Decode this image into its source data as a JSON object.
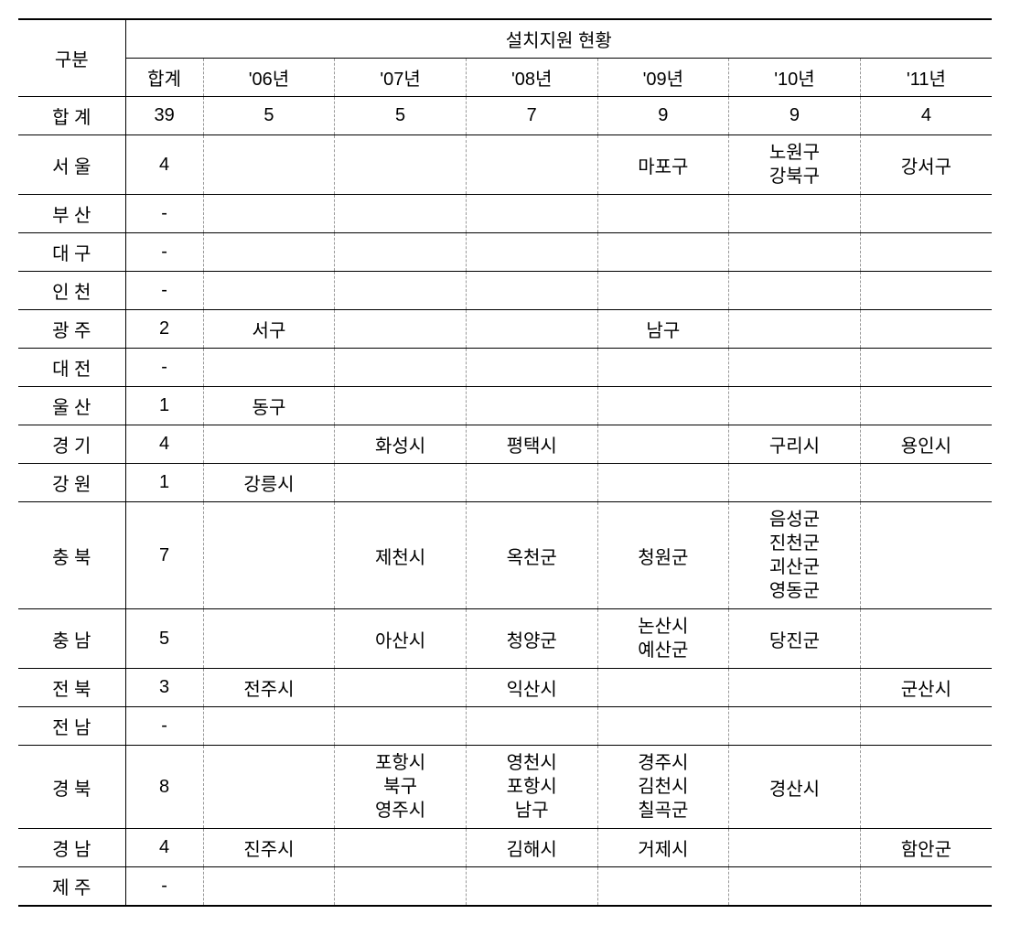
{
  "header": {
    "gubun": "구분",
    "main_header": "설치지원 현황",
    "hapgye": "합계",
    "years": [
      "'06년",
      "'07년",
      "'08년",
      "'09년",
      "'10년",
      "'11년"
    ]
  },
  "totals": {
    "label": "합 계",
    "hapgye": "39",
    "values": [
      "5",
      "5",
      "7",
      "9",
      "9",
      "4"
    ]
  },
  "rows": [
    {
      "region": "서 울",
      "hapgye": "4",
      "cells": [
        "",
        "",
        "",
        "마포구",
        "노원구\n강북구",
        "강서구"
      ]
    },
    {
      "region": "부 산",
      "hapgye": "-",
      "cells": [
        "",
        "",
        "",
        "",
        "",
        ""
      ]
    },
    {
      "region": "대 구",
      "hapgye": "-",
      "cells": [
        "",
        "",
        "",
        "",
        "",
        ""
      ]
    },
    {
      "region": "인 천",
      "hapgye": "-",
      "cells": [
        "",
        "",
        "",
        "",
        "",
        ""
      ]
    },
    {
      "region": "광 주",
      "hapgye": "2",
      "cells": [
        "서구",
        "",
        "",
        "남구",
        "",
        ""
      ]
    },
    {
      "region": "대 전",
      "hapgye": "-",
      "cells": [
        "",
        "",
        "",
        "",
        "",
        ""
      ]
    },
    {
      "region": "울 산",
      "hapgye": "1",
      "cells": [
        "동구",
        "",
        "",
        "",
        "",
        ""
      ]
    },
    {
      "region": "경 기",
      "hapgye": "4",
      "cells": [
        "",
        "화성시",
        "평택시",
        "",
        "구리시",
        "용인시"
      ]
    },
    {
      "region": "강 원",
      "hapgye": "1",
      "cells": [
        "강릉시",
        "",
        "",
        "",
        "",
        ""
      ]
    },
    {
      "region": "충 북",
      "hapgye": "7",
      "cells": [
        "",
        "제천시",
        "옥천군",
        "청원군",
        "음성군\n진천군\n괴산군\n영동군",
        ""
      ]
    },
    {
      "region": "충 남",
      "hapgye": "5",
      "cells": [
        "",
        "아산시",
        "청양군",
        "논산시\n예산군",
        "당진군",
        ""
      ]
    },
    {
      "region": "전 북",
      "hapgye": "3",
      "cells": [
        "전주시",
        "",
        "익산시",
        "",
        "",
        "군산시"
      ]
    },
    {
      "region": "전 남",
      "hapgye": "-",
      "cells": [
        "",
        "",
        "",
        "",
        "",
        ""
      ]
    },
    {
      "region": "경 북",
      "hapgye": "8",
      "cells": [
        "",
        "포항시\n북구\n영주시",
        "영천시\n포항시\n남구",
        "경주시\n김천시\n칠곡군",
        "경산시",
        ""
      ]
    },
    {
      "region": "경 남",
      "hapgye": "4",
      "cells": [
        "진주시",
        "",
        "김해시",
        "거제시",
        "",
        "함안군"
      ]
    },
    {
      "region": "제 주",
      "hapgye": "-",
      "cells": [
        "",
        "",
        "",
        "",
        "",
        ""
      ]
    }
  ]
}
